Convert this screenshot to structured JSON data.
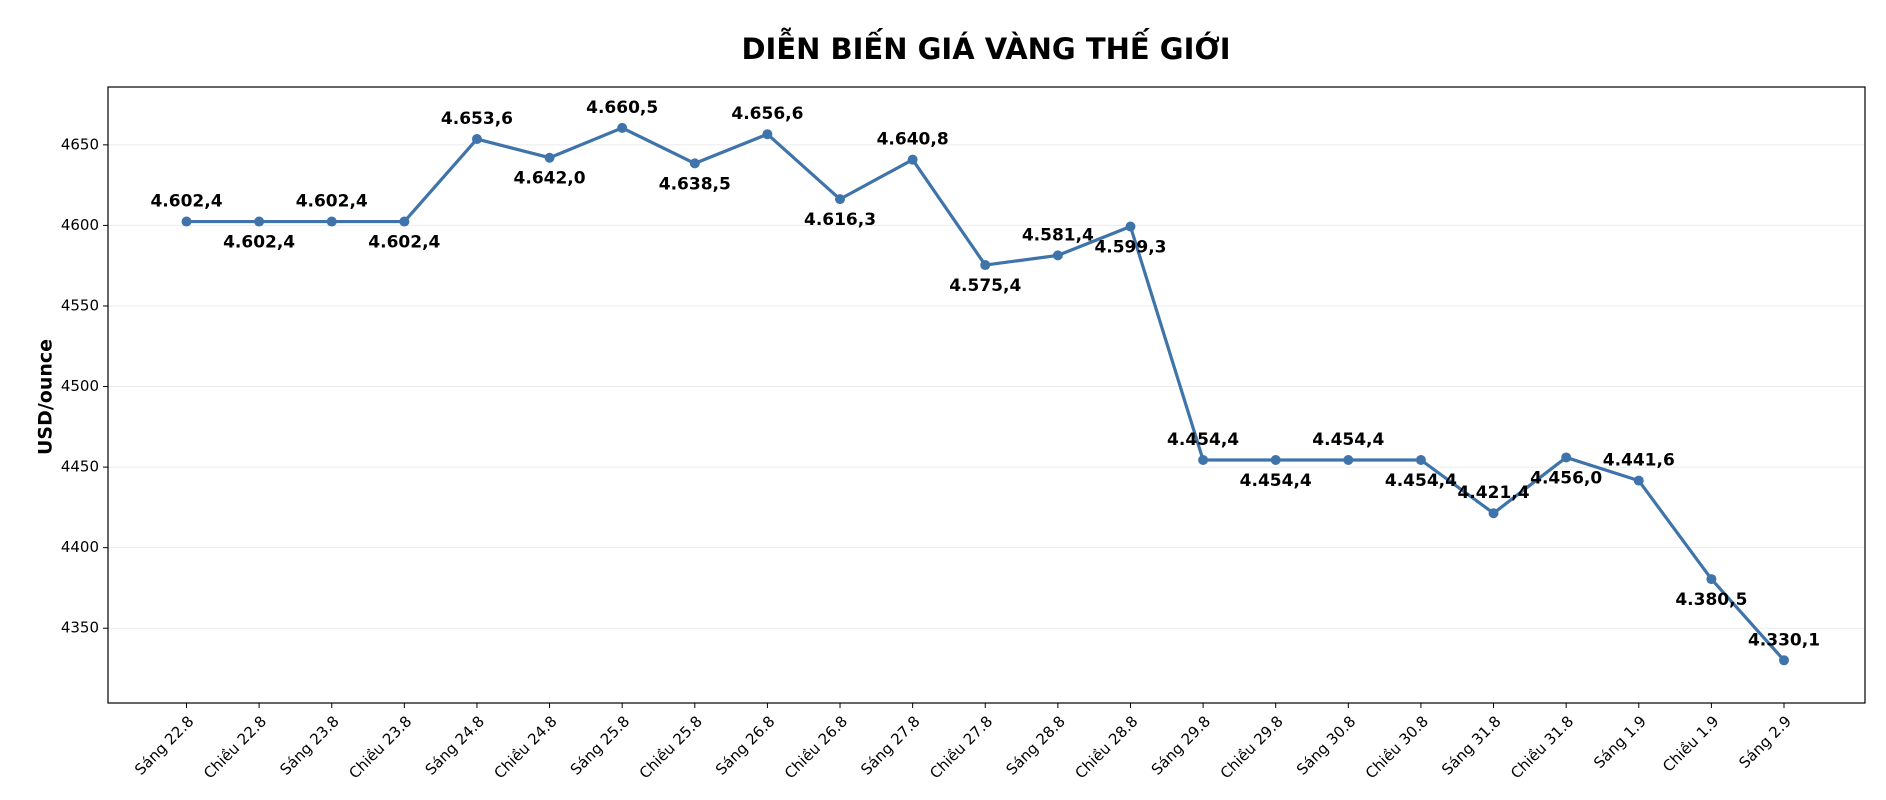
{
  "chart_data": {
    "type": "line",
    "title": "DIỄN BIẾN GIÁ VÀNG THẾ GIỚI",
    "y_label": "USD/ounce",
    "categories": [
      "Sáng 22.8",
      "Chiều 22.8",
      "Sáng 23.8",
      "Chiều 23.8",
      "Sáng 24.8",
      "Chiều 24.8",
      "Sáng 25.8",
      "Chiều 25.8",
      "Sáng 26.8",
      "Chiều 26.8",
      "Sáng 27.8",
      "Chiều 27.8",
      "Sáng 28.8",
      "Chiều 28.8",
      "Sáng 29.8",
      "Chiều 29.8",
      "Sáng 30.8",
      "Chiều 30.8",
      "Sáng 31.8",
      "Chiều 31.8",
      "Sáng 1.9",
      "Chiều 1.9",
      "Sáng 2.9"
    ],
    "values": [
      4602.4,
      4602.4,
      4602.4,
      4602.4,
      4653.6,
      4642.0,
      4660.5,
      4638.5,
      4656.6,
      4616.3,
      4640.8,
      4575.4,
      4581.4,
      4599.3,
      4454.4,
      4454.4,
      4454.4,
      4454.4,
      4421.4,
      4456.0,
      4441.6,
      4380.5,
      4330.1
    ],
    "value_labels": [
      "4.602,4",
      "4.602,4",
      "4.602,4",
      "4.602,4",
      "4.653,6",
      "4.642,0",
      "4.660,5",
      "4.638,5",
      "4.656,6",
      "4.616,3",
      "4.640,8",
      "4.575,4",
      "4.581,4",
      "4.599,3",
      "4.454,4",
      "4.454,4",
      "4.454,4",
      "4.454,4",
      "4.421,4",
      "4.456,0",
      "4.441,6",
      "4.380,5",
      "4.330,1"
    ],
    "color": "#3f74ab",
    "ylim": [
      4303.6,
      4685.9
    ],
    "yticks": [
      4350,
      4400,
      4450,
      4500,
      4550,
      4600,
      4650
    ],
    "grid": true
  }
}
